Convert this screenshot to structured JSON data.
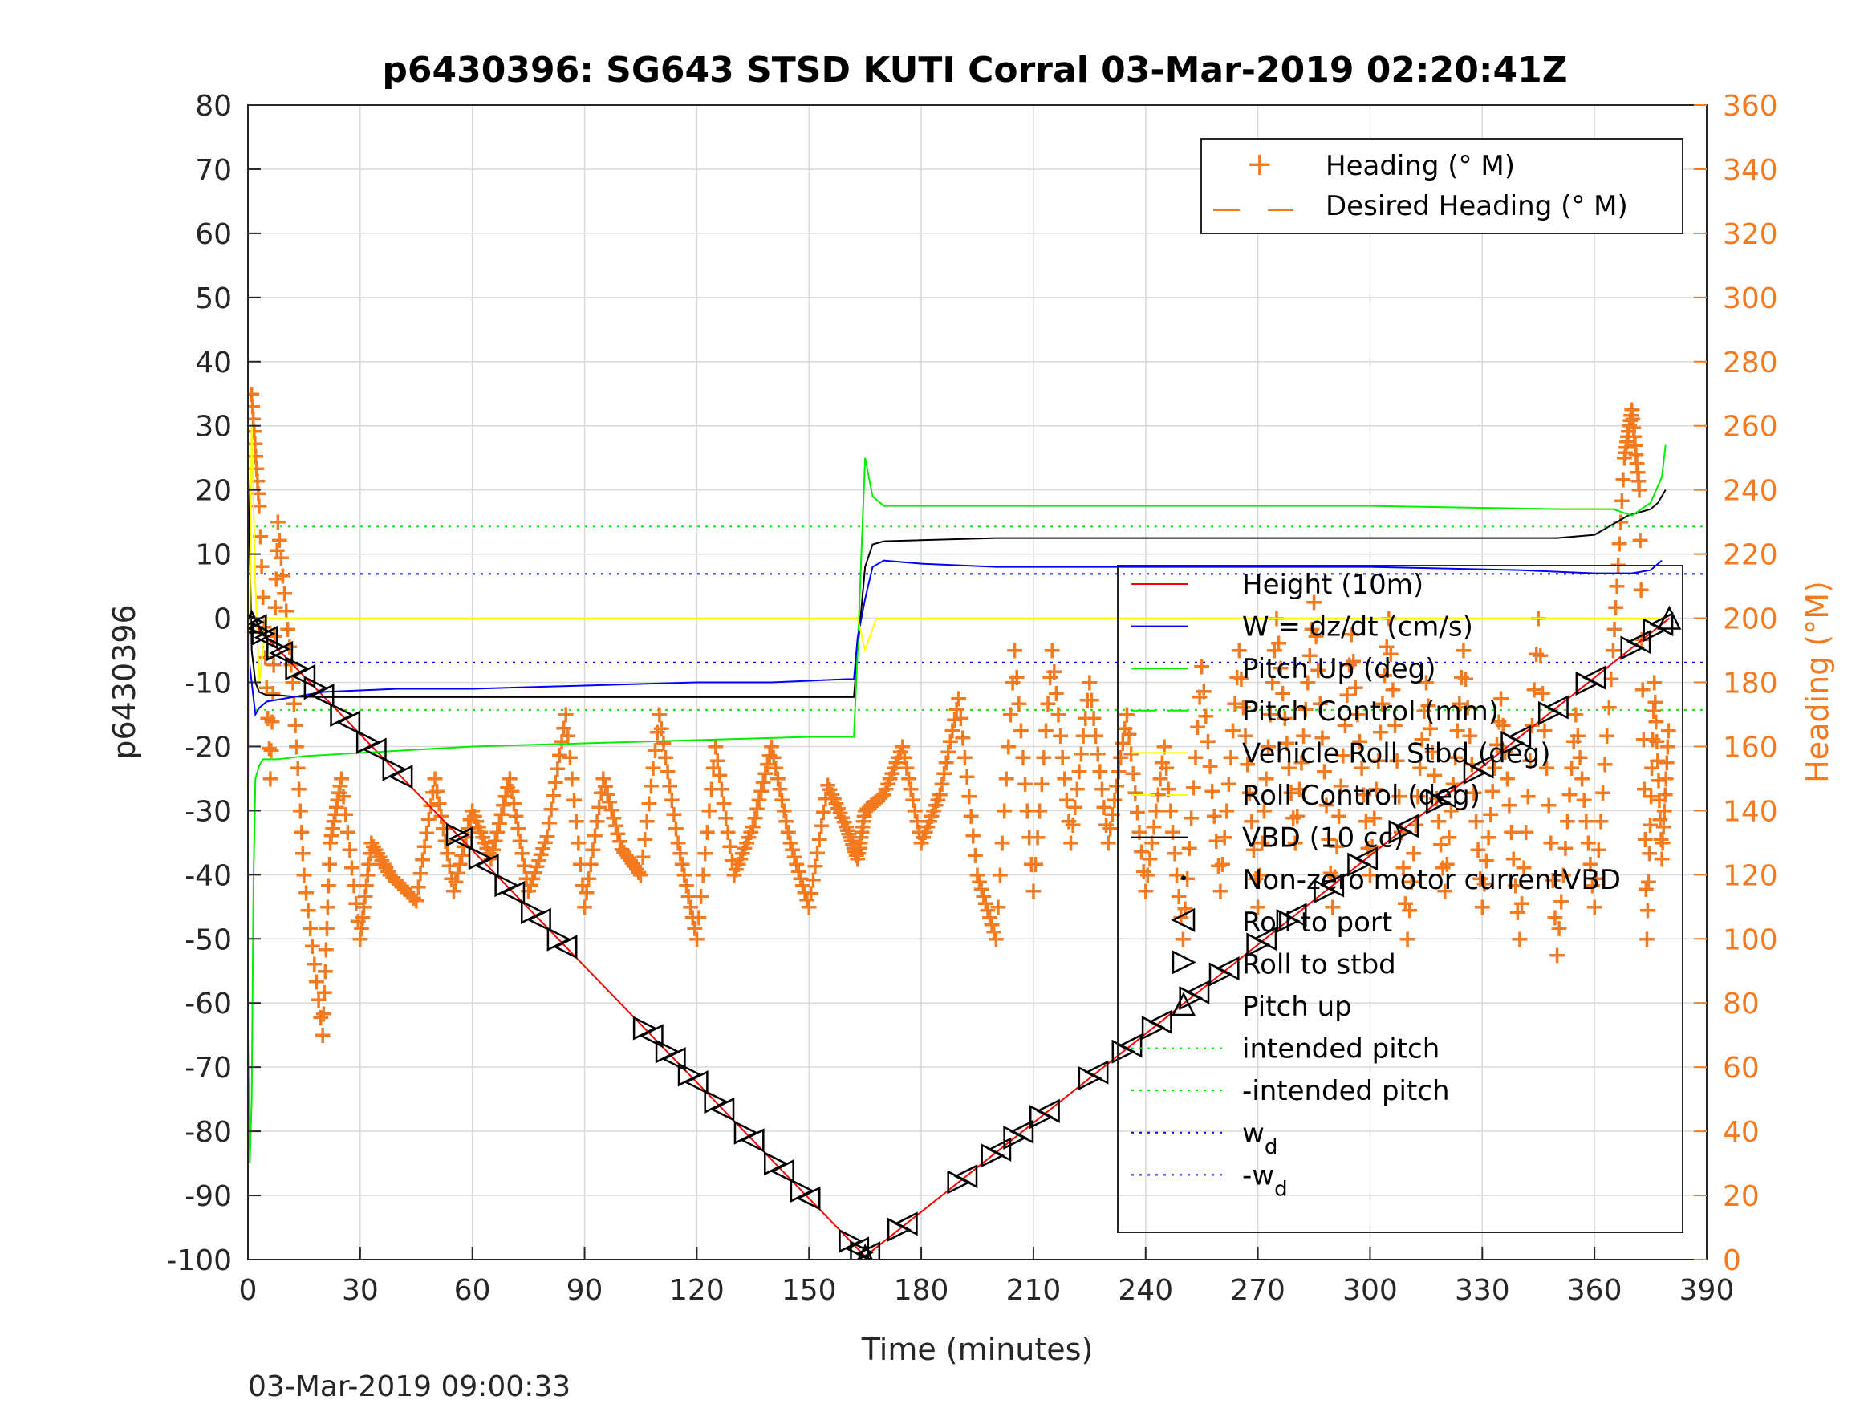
{
  "chart_data": {
    "type": "line",
    "title": "p6430396: SG643 STSD KUTI Corral 03-Mar-2019 02:20:41Z",
    "xlabel": "Time (minutes)",
    "ylabel": "p6430396",
    "y2label": "Heading (°M)",
    "timestamp": "03-Mar-2019 09:00:33",
    "xlim": [
      0,
      390
    ],
    "ylim": [
      -100,
      80
    ],
    "y2lim": [
      0,
      360
    ],
    "xticks": [
      0,
      30,
      60,
      90,
      120,
      150,
      180,
      210,
      240,
      270,
      300,
      330,
      360,
      390
    ],
    "yticks": [
      80,
      70,
      60,
      50,
      40,
      30,
      20,
      10,
      0,
      -10,
      -20,
      -30,
      -40,
      -50,
      -60,
      -70,
      -80,
      -90,
      -100
    ],
    "y2ticks": [
      360,
      340,
      320,
      300,
      280,
      260,
      240,
      220,
      200,
      180,
      160,
      140,
      120,
      100,
      80,
      60,
      40,
      20,
      0
    ],
    "grid": true,
    "colors": {
      "height": "#ff0000",
      "w": "#0000ff",
      "pitch": "#00ee00",
      "roll": "#ffff00",
      "vbd": "#000000",
      "heading": "#f47a20",
      "axis": "#262626"
    },
    "legend_top": {
      "placement": "top-right",
      "entries": [
        "Heading (° M)",
        "Desired Heading (° M)"
      ]
    },
    "legend_main": {
      "placement": "lower-right",
      "entries": [
        "Height (10m)",
        "W = dz/dt (cm/s)",
        "Pitch Up (deg)",
        "Pitch Control (mm)",
        "Vehicle Roll Stbd (deg)",
        "Roll Control (deg)",
        "VBD (10 cc)",
        "Non-zero motor currentVBD",
        "Roll to port",
        "Roll to stbd",
        "Pitch up",
        "intended pitch",
        "-intended pitch",
        "w",
        "-w"
      ],
      "subscript": "d"
    },
    "reference_lines": {
      "intended_pitch": 14.3,
      "neg_intended_pitch": -14.3,
      "w_d": 6.9,
      "neg_w_d": -6.9
    },
    "series": [
      {
        "name": "Height (10m)",
        "axis": "left",
        "x": [
          0,
          165,
          380
        ],
        "y": [
          0,
          -99.5,
          0
        ]
      },
      {
        "name": "VBD (10 cc)",
        "axis": "left",
        "x": [
          0,
          0.5,
          1,
          2,
          3,
          5,
          8,
          12,
          20,
          100,
          162,
          163,
          165,
          167,
          170,
          200,
          300,
          350,
          360,
          363,
          366,
          369,
          372,
          375,
          377,
          378,
          379
        ],
        "y": [
          22,
          10,
          -5,
          -10,
          -11.5,
          -12,
          -12,
          -12.2,
          -12.3,
          -12.3,
          -12.3,
          -5,
          8,
          11.5,
          12,
          12.5,
          12.5,
          12.5,
          13,
          14,
          15,
          16,
          16.5,
          17,
          18,
          19,
          20
        ]
      },
      {
        "name": "Pitch Up (deg)",
        "axis": "left",
        "x": [
          0,
          0.5,
          1,
          1.5,
          2,
          3,
          4,
          5,
          8,
          15,
          30,
          60,
          90,
          120,
          150,
          162,
          163,
          164,
          165,
          166,
          167,
          170,
          200,
          250,
          300,
          350,
          365,
          370,
          375,
          378,
          379
        ],
        "y": [
          -65,
          -85,
          -75,
          -40,
          -25,
          -23,
          -22,
          -22,
          -22,
          -21.5,
          -21,
          -20,
          -19.5,
          -19,
          -18.5,
          -18.5,
          -5,
          10,
          25,
          22,
          19,
          17.5,
          17.5,
          17.5,
          17.5,
          17,
          17,
          16,
          18,
          22,
          27
        ]
      },
      {
        "name": "W = dz/dt (cm/s)",
        "axis": "left",
        "x": [
          0,
          1,
          2,
          3,
          5,
          10,
          20,
          40,
          60,
          90,
          120,
          140,
          160,
          162,
          163,
          165,
          167,
          170,
          180,
          200,
          240,
          280,
          300,
          340,
          360,
          370,
          375,
          378
        ],
        "y": [
          -5,
          -10,
          -15,
          -14,
          -13,
          -12.5,
          -11.5,
          -11,
          -11,
          -10.5,
          -10,
          -10,
          -9.5,
          -9.5,
          -3,
          3,
          8,
          9,
          8.5,
          8,
          8,
          8,
          8,
          7.5,
          7,
          7,
          7.5,
          9
        ]
      },
      {
        "name": "Vehicle Roll Stbd (deg)",
        "axis": "left",
        "x": [
          0,
          1,
          2,
          3,
          5,
          10,
          60,
          120,
          163,
          165,
          168,
          200,
          300,
          378
        ],
        "y": [
          -30,
          30,
          5,
          -10,
          0,
          0,
          0,
          0,
          0,
          -5,
          0,
          0,
          0,
          0
        ]
      },
      {
        "name": "Heading (° M)",
        "axis": "right",
        "samples": [
          [
            1,
            270
          ],
          [
            3,
            235
          ],
          [
            6,
            150
          ],
          [
            8,
            230
          ],
          [
            12,
            180
          ],
          [
            15,
            120
          ],
          [
            20,
            70
          ],
          [
            22,
            130
          ],
          [
            25,
            150
          ],
          [
            30,
            100
          ],
          [
            33,
            130
          ],
          [
            38,
            120
          ],
          [
            45,
            112
          ],
          [
            50,
            150
          ],
          [
            55,
            115
          ],
          [
            60,
            140
          ],
          [
            65,
            125
          ],
          [
            70,
            150
          ],
          [
            75,
            115
          ],
          [
            80,
            132
          ],
          [
            85,
            170
          ],
          [
            90,
            110
          ],
          [
            95,
            150
          ],
          [
            100,
            128
          ],
          [
            105,
            120
          ],
          [
            110,
            170
          ],
          [
            115,
            130
          ],
          [
            120,
            100
          ],
          [
            125,
            160
          ],
          [
            130,
            120
          ],
          [
            135,
            135
          ],
          [
            140,
            160
          ],
          [
            145,
            130
          ],
          [
            150,
            110
          ],
          [
            155,
            148
          ],
          [
            160,
            135
          ],
          [
            163,
            125
          ],
          [
            165,
            140
          ],
          [
            170,
            145
          ],
          [
            175,
            160
          ],
          [
            180,
            130
          ],
          [
            185,
            145
          ],
          [
            190,
            175
          ],
          [
            195,
            120
          ],
          [
            200,
            100
          ],
          [
            205,
            190
          ],
          [
            210,
            115
          ],
          [
            215,
            190
          ],
          [
            220,
            130
          ],
          [
            225,
            180
          ],
          [
            230,
            130
          ],
          [
            235,
            170
          ],
          [
            240,
            115
          ],
          [
            245,
            160
          ],
          [
            250,
            100
          ],
          [
            255,
            185
          ],
          [
            260,
            115
          ],
          [
            265,
            190
          ],
          [
            270,
            110
          ],
          [
            275,
            200
          ],
          [
            280,
            130
          ],
          [
            285,
            205
          ],
          [
            290,
            110
          ],
          [
            295,
            195
          ],
          [
            300,
            120
          ],
          [
            305,
            200
          ],
          [
            310,
            100
          ],
          [
            315,
            180
          ],
          [
            320,
            115
          ],
          [
            325,
            190
          ],
          [
            330,
            110
          ],
          [
            335,
            175
          ],
          [
            340,
            100
          ],
          [
            345,
            200
          ],
          [
            350,
            95
          ],
          [
            355,
            170
          ],
          [
            360,
            110
          ],
          [
            365,
            190
          ],
          [
            368,
            250
          ],
          [
            370,
            265
          ],
          [
            372,
            240
          ],
          [
            374,
            100
          ],
          [
            376,
            180
          ],
          [
            378,
            125
          ],
          [
            380,
            170
          ]
        ]
      }
    ],
    "markers": {
      "roll_to_port_x": [
        2,
        5,
        9,
        15,
        20,
        27,
        34,
        41,
        57,
        64,
        71,
        78,
        85,
        108,
        114,
        120,
        127,
        135,
        143,
        150,
        163,
        166,
        176,
        192,
        201,
        207,
        214,
        227,
        236,
        244,
        254,
        262,
        272,
        280,
        290,
        299,
        310,
        320,
        330,
        340,
        350,
        360,
        372,
        378
      ],
      "roll_to_stbd_x": [
        1,
        4,
        8,
        13,
        18,
        25,
        32,
        39,
        56,
        62,
        69,
        76,
        83,
        106,
        112,
        118,
        125,
        133,
        141,
        148,
        161,
        164,
        174,
        190,
        199,
        205,
        212,
        225,
        234,
        242,
        252,
        260,
        270,
        278,
        288,
        297,
        308,
        318,
        328,
        338,
        348,
        358,
        370,
        376
      ],
      "pitch_up_x": [
        1,
        165,
        380
      ]
    }
  }
}
